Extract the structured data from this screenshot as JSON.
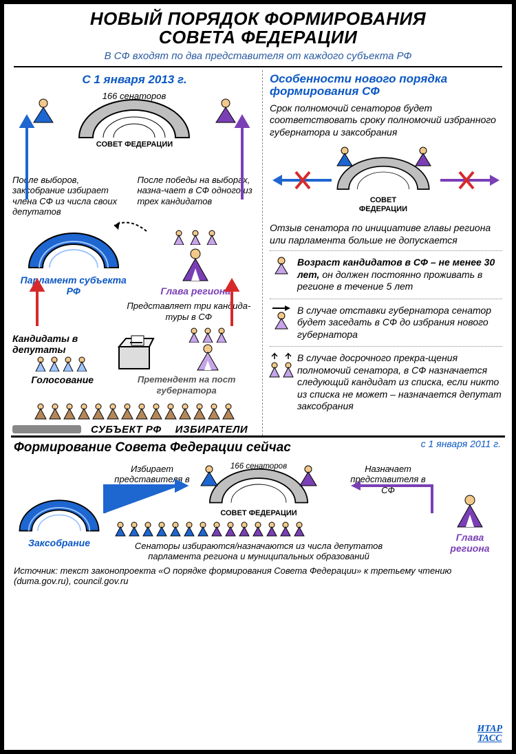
{
  "colors": {
    "blue": "#1e66d0",
    "purple": "#7a3fb5",
    "red": "#d62a2a",
    "gray": "#8b8f96",
    "black": "#000",
    "lightblue": "#9ec5ff",
    "lightpurple": "#c6a5e8"
  },
  "header": {
    "title_l1": "НОВЫЙ ПОРЯДОК ФОРМИРОВАНИЯ",
    "title_l2": "СОВЕТА ФЕДЕРАЦИИ",
    "subtitle": "В СФ входят по два представителя от каждого субъекта РФ"
  },
  "left": {
    "date": "С 1 января 2013 г.",
    "senators_count": "166 сенаторов",
    "council_label": "СОВЕТ ФЕДЕРАЦИИ",
    "after_elections": "После выборов, заксобрание избирает члена СФ из числа своих депутатов",
    "after_win": "После победы на выборах, назна-чает в СФ одного из трех кандидатов",
    "parliament_label": "Парламент субъекта РФ",
    "governor_label": "Глава региона",
    "presents": "Представляет три кандида-туры в СФ",
    "candidates_label": "Кандидаты в депутаты",
    "gov_candidate_label": "Претендент на пост губернатора",
    "voting": "Голосование",
    "subject": "СУБЪЕКТ РФ",
    "voters": "ИЗБИРАТЕЛИ"
  },
  "right": {
    "title": "Особенности нового порядка формирования СФ",
    "p1": "Срок полномочий сенаторов будет соответствовать сроку полномочий избранного губернатора и заксобрания",
    "council_label": "СОВЕТ ФЕДЕРАЦИИ",
    "p2": "Отзыв сенатора по инициативе главы региона или парламента больше не допускается",
    "p3a": "Возраст кандидатов в СФ – не менее 30 лет, ",
    "p3b": "он должен постоянно проживать в регионе в течение 5 лет",
    "p4": "В случае отставки губернатора сенатор будет заседать в СФ до избрания нового губернатора",
    "p5": "В случае досрочного прекра-щения полномочий сенатора, в СФ назначается следующий кандидат из списка, если никто из списка не может – назначается депутат заксобрания"
  },
  "bottom": {
    "title": "Формирование Совета Федерации сейчас",
    "date": "с 1 января 2011 г.",
    "senators_count": "166 сенаторов",
    "council_label": "СОВЕТ ФЕДЕРАЦИИ",
    "elects": "Избирает представителя в СФ",
    "appoints": "Назначает представителя в СФ",
    "assembly": "Заксобрание",
    "governor": "Глава региона",
    "note": "Сенаторы избираются/назначаются из числа депутатов парламента региона и муниципальных образований"
  },
  "source": "Источник: текст законопроекта «О порядке формирования Совета Федерации» к третьему чтению (duma.gov.ru), council.gov.ru",
  "logo": {
    "l1": "ИТАР",
    "l2": "ТАСС"
  }
}
